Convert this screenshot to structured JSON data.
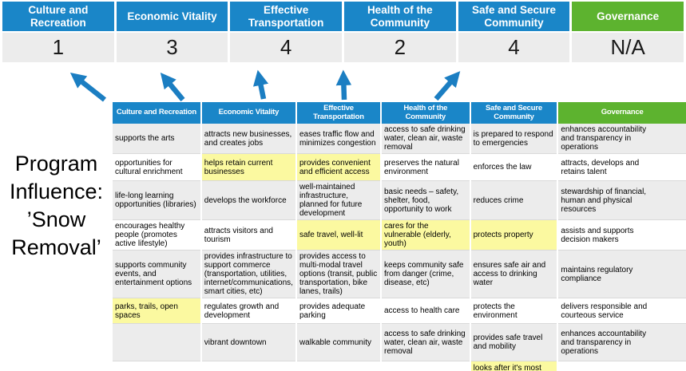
{
  "program": {
    "title": "Program Influence: ’Snow Removal’"
  },
  "colors": {
    "blue": "#1a86c8",
    "green": "#5db32f",
    "highlight": "#fbf9a0",
    "band": "#ececec",
    "score_bg": "#ececec",
    "arrow": "#1b7ec2"
  },
  "summary": {
    "columns": [
      {
        "label": "Culture and Recreation",
        "score": "1",
        "color_key": "blue"
      },
      {
        "label": "Economic Vitality",
        "score": "3",
        "color_key": "blue"
      },
      {
        "label": "Effective Transportation",
        "score": "4",
        "color_key": "blue"
      },
      {
        "label": "Health of the Community",
        "score": "2",
        "color_key": "blue"
      },
      {
        "label": "Safe and Secure Community",
        "score": "4",
        "color_key": "blue"
      },
      {
        "label": "Governance",
        "score": "N/A",
        "color_key": "green"
      }
    ]
  },
  "table": {
    "headers": [
      {
        "label": "Culture and Recreation",
        "color_key": "blue"
      },
      {
        "label": "Economic Vitality",
        "color_key": "blue"
      },
      {
        "label": "Effective Transportation",
        "color_key": "blue"
      },
      {
        "label": "Health of the Community",
        "color_key": "blue"
      },
      {
        "label": "Safe and Secure Community",
        "color_key": "blue"
      },
      {
        "label": "Governance",
        "color_key": "green"
      }
    ],
    "rows": [
      [
        {
          "t": "supports the arts",
          "h": false
        },
        {
          "t": "attracts new businesses, and creates jobs",
          "h": false
        },
        {
          "t": "eases traffic flow and minimizes congestion",
          "h": true
        },
        {
          "t": "access to safe drinking water, clean air, waste removal",
          "h": false
        },
        {
          "t": "is prepared to respond to emergencies",
          "h": true
        },
        {
          "t": "enhances accountability and transparency in operations",
          "h": false
        }
      ],
      [
        {
          "t": "opportunities for cultural enrichment",
          "h": false
        },
        {
          "t": "helps retain current businesses",
          "h": true
        },
        {
          "t": "provides convenient and efficient access",
          "h": true
        },
        {
          "t": "preserves the natural environment",
          "h": false
        },
        {
          "t": "enforces the law",
          "h": false
        },
        {
          "t": "attracts, develops and retains talent",
          "h": false
        }
      ],
      [
        {
          "t": "life-long learning opportunities (libraries)",
          "h": false
        },
        {
          "t": "develops the workforce",
          "h": false
        },
        {
          "t": "well-maintained infrastructure, planned for future development",
          "h": false
        },
        {
          "t": "basic needs – safety, shelter, food, opportunity to work",
          "h": true
        },
        {
          "t": "reduces crime",
          "h": false
        },
        {
          "t": "stewardship of financial, human and physical resources",
          "h": false
        }
      ],
      [
        {
          "t": "encourages healthy people (promotes active lifestyle)",
          "h": false
        },
        {
          "t": "attracts visitors and tourism",
          "h": false
        },
        {
          "t": "safe travel, well-lit",
          "h": true
        },
        {
          "t": "cares for the vulnerable (elderly, youth)",
          "h": true
        },
        {
          "t": "protects property",
          "h": true
        },
        {
          "t": "assists and supports decision makers",
          "h": false
        }
      ],
      [
        {
          "t": "supports community events, and entertainment options",
          "h": false
        },
        {
          "t": "provides infrastructure to support commerce (transportation, utilities, internet/communications, smart cities, etc)",
          "h": true
        },
        {
          "t": "provides access to multi-modal travel options (transit, public transportation, bike lanes, trails)",
          "h": true
        },
        {
          "t": "keeps community safe from danger (crime, disease, etc)",
          "h": true
        },
        {
          "t": "ensures safe air and access to drinking water",
          "h": false
        },
        {
          "t": "maintains regulatory compliance",
          "h": false
        }
      ],
      [
        {
          "t": "parks, trails, open spaces",
          "h": true
        },
        {
          "t": "regulates growth and development",
          "h": false
        },
        {
          "t": "provides adequate parking",
          "h": false
        },
        {
          "t": "access to health care",
          "h": false
        },
        {
          "t": "protects the environment",
          "h": false
        },
        {
          "t": "delivers responsible and courteous service",
          "h": false
        }
      ],
      [
        {
          "t": "",
          "h": false
        },
        {
          "t": "vibrant downtown",
          "h": false
        },
        {
          "t": "walkable community",
          "h": false
        },
        {
          "t": "access to safe drinking water, clean air, waste removal",
          "h": false
        },
        {
          "t": "provides safe travel and mobility",
          "h": true
        },
        {
          "t": "enhances accountability and transparency in operations",
          "h": false
        }
      ],
      [
        {
          "t": "",
          "h": false
        },
        {
          "t": "",
          "h": false
        },
        {
          "t": "",
          "h": false
        },
        {
          "t": "",
          "h": false
        },
        {
          "t": "looks after it's most vulnerable",
          "h": true
        },
        {
          "t": "",
          "h": false
        }
      ]
    ]
  }
}
